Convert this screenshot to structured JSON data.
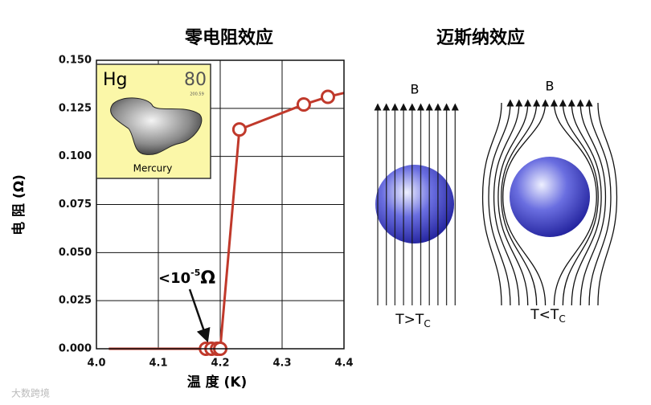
{
  "chart_data": {
    "type": "line",
    "title": "零电阻效应",
    "xlabel": "温 度 (K)",
    "ylabel": "电 阻 (Ω)",
    "x": [
      4.02,
      4.177,
      4.186,
      4.195,
      4.2,
      4.231,
      4.335,
      4.374,
      4.4
    ],
    "values": [
      0,
      0,
      0,
      0,
      0,
      0.114,
      0.127,
      0.131,
      0.133
    ],
    "points": {
      "x": [
        4.177,
        4.186,
        4.195,
        4.2,
        4.231,
        4.335,
        4.374
      ],
      "values": [
        0,
        0,
        0,
        0,
        0.114,
        0.127,
        0.131
      ]
    },
    "color": "#c0392b",
    "xlim": [
      4.0,
      4.4
    ],
    "xticks": [
      {
        "value": 4.0,
        "label": "4.0"
      },
      4.1,
      4.2,
      4.3,
      4.4
    ],
    "ylim": [
      0,
      0.15
    ],
    "yticks": [
      {
        "value": 0,
        "label": "0.000"
      },
      {
        "value": 0.025,
        "label": "0.025"
      },
      {
        "value": 0.05,
        "label": "0.050"
      },
      {
        "value": 0.075,
        "label": "0.075"
      },
      {
        "value": 0.1,
        "label": "0.100"
      },
      {
        "value": 0.125,
        "label": "0.125"
      },
      {
        "value": 0.15,
        "label": "0.150"
      }
    ],
    "grid": true,
    "annotation": {
      "text": "<10",
      "sup": "-5",
      "unit": "Ω"
    },
    "inset": {
      "symbol": "Hg",
      "number": "80",
      "mass": "200.59",
      "name": "Mercury"
    }
  },
  "meissner": {
    "title": "迈斯纳效应",
    "left": {
      "field": "B",
      "label": "T>T",
      "sub": "C"
    },
    "right": {
      "field": "B",
      "label": "T<T",
      "sub": "C"
    }
  },
  "watermark": "大数跨境"
}
